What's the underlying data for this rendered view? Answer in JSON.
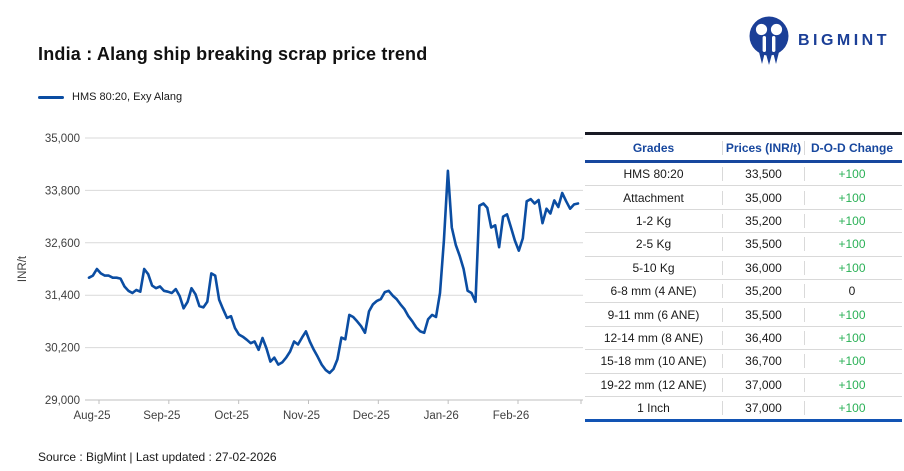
{
  "brand": {
    "name": "BIGMINT",
    "color": "#1b3f97"
  },
  "title": "India : Alang ship breaking scrap price trend",
  "legend": {
    "label": "HMS 80:20, Exy Alang"
  },
  "source_note": "Source : BigMint | Last updated : 27-02-2026",
  "chart_data": {
    "type": "line",
    "title": "India : Alang ship breaking scrap price trend",
    "ylabel": "INR/t",
    "ylim": [
      29000,
      35000
    ],
    "y_ticks": [
      35000,
      33800,
      32600,
      31400,
      30200,
      29000
    ],
    "x_tick_labels": [
      "Aug-25",
      "Sep-25",
      "Oct-25",
      "Nov-25",
      "Dec-25",
      "Jan-26",
      "Feb-26"
    ],
    "grid": "horizontal",
    "legend_position": "top-left",
    "series": [
      {
        "name": "HMS 80:20, Exy Alang",
        "color": "#0b4da2",
        "values": [
          31800,
          31850,
          32000,
          31900,
          31850,
          31850,
          31800,
          31800,
          31780,
          31600,
          31500,
          31450,
          31520,
          31480,
          32000,
          31880,
          31620,
          31560,
          31600,
          31500,
          31480,
          31450,
          31540,
          31380,
          31100,
          31250,
          31560,
          31420,
          31150,
          31120,
          31250,
          31900,
          31850,
          31300,
          31080,
          30880,
          30920,
          30650,
          30500,
          30450,
          30380,
          30300,
          30340,
          30150,
          30420,
          30180,
          29880,
          29970,
          29810,
          29860,
          29970,
          30110,
          30340,
          30270,
          30430,
          30570,
          30340,
          30150,
          29990,
          29810,
          29690,
          29620,
          29710,
          29930,
          30430,
          30390,
          30950,
          30900,
          30800,
          30690,
          30540,
          31030,
          31190,
          31270,
          31310,
          31470,
          31500,
          31390,
          31310,
          31190,
          31080,
          30920,
          30800,
          30660,
          30570,
          30540,
          30850,
          30950,
          30900,
          31450,
          32650,
          34250,
          32950,
          32550,
          32300,
          32000,
          31500,
          31450,
          31250,
          33450,
          33500,
          33400,
          32950,
          33000,
          32500,
          33200,
          33250,
          32950,
          32650,
          32420,
          32700,
          33550,
          33600,
          33500,
          33580,
          33050,
          33380,
          33270,
          33570,
          33420,
          33740,
          33550,
          33380,
          33480,
          33500
        ]
      }
    ]
  },
  "table": {
    "headers": [
      "Grades",
      "Prices (INR/t)",
      "D-O-D Change"
    ],
    "positive_color": "#2bb157",
    "rows": [
      {
        "grade": "HMS 80:20",
        "price": "33,500",
        "change": "+100"
      },
      {
        "grade": "Attachment",
        "price": "35,000",
        "change": "+100"
      },
      {
        "grade": "1-2 Kg",
        "price": "35,200",
        "change": "+100"
      },
      {
        "grade": "2-5 Kg",
        "price": "35,500",
        "change": "+100"
      },
      {
        "grade": "5-10 Kg",
        "price": "36,000",
        "change": "+100"
      },
      {
        "grade": "6-8 mm (4 ANE)",
        "price": "35,200",
        "change": "0"
      },
      {
        "grade": "9-11 mm (6 ANE)",
        "price": "35,500",
        "change": "+100"
      },
      {
        "grade": "12-14 mm (8 ANE)",
        "price": "36,400",
        "change": "+100"
      },
      {
        "grade": "15-18 mm (10 ANE)",
        "price": "36,700",
        "change": "+100"
      },
      {
        "grade": "19-22 mm (12 ANE)",
        "price": "37,000",
        "change": "+100"
      },
      {
        "grade": "1 Inch",
        "price": "37,000",
        "change": "+100"
      }
    ]
  }
}
